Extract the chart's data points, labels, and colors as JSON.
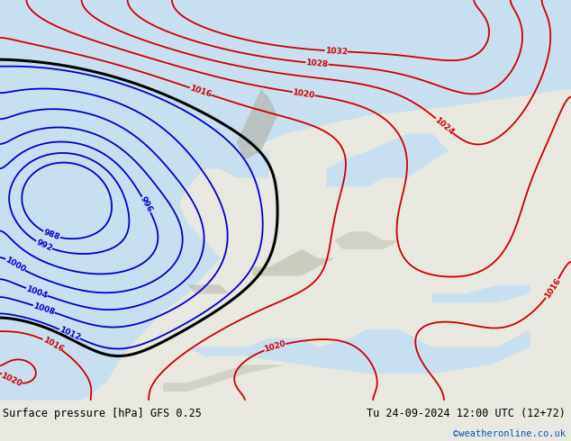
{
  "title_left": "Surface pressure [hPa] GFS 0.25",
  "title_right": "Tu 24-09-2024 12:00 UTC (12+72)",
  "credit": "©weatheronline.co.uk",
  "fig_width": 6.34,
  "fig_height": 4.9,
  "background_color": "#e8e8e0",
  "land_color": "#c8dba0",
  "sea_color": "#c8dff0",
  "mountain_color": "#b0b0a0",
  "footer_color": "#d8d8d0",
  "contour_black": "#000000",
  "contour_blue": "#0000cc",
  "contour_red": "#cc0000",
  "credit_color": "#0055cc",
  "footer_text_color": "#000000"
}
